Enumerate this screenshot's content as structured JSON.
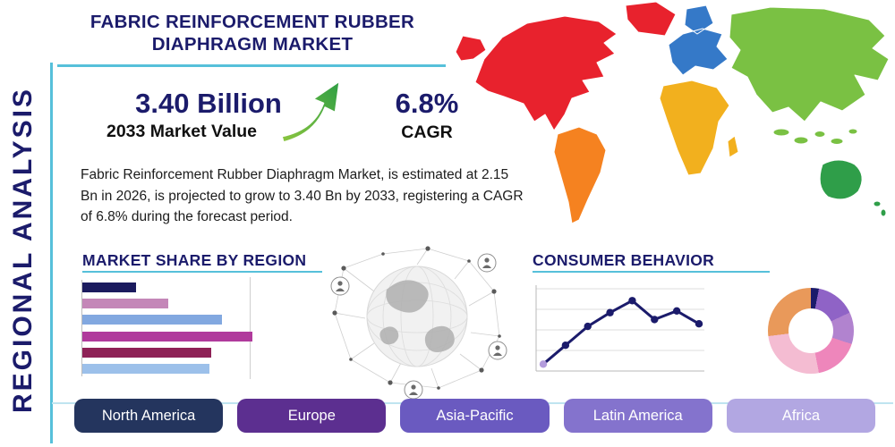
{
  "page": {
    "title": "FABRIC REINFORCEMENT RUBBER DIAPHRAGM MARKET",
    "side_label": "REGIONAL ANALYSIS"
  },
  "stats": {
    "market_value": "3.40 Billion",
    "market_value_label": "2033 Market Value",
    "cagr_value": "6.8%",
    "cagr_label": "CAGR"
  },
  "description": "Fabric Reinforcement Rubber Diaphragm Market, is estimated at 2.15 Bn in 2026, is projected to grow to 3.40 Bn by 2033, registering a CAGR of 6.8% during the forecast period.",
  "accent": {
    "teal": "#56c0da",
    "navy": "#1b1b6b",
    "arrow_green_light": "#8cc63f",
    "arrow_green_dark": "#2e9e44"
  },
  "chart_data": [
    {
      "type": "bar",
      "title": "MARKET SHARE BY REGION",
      "orientation": "horizontal",
      "values": [
        30,
        48,
        78,
        95,
        72,
        71
      ],
      "colors": [
        "#1b1b5e",
        "#c487b8",
        "#82a8e0",
        "#b03a9c",
        "#8e2156",
        "#9cc0ea"
      ],
      "xlim": [
        0,
        100
      ],
      "grid": true
    },
    {
      "type": "line",
      "title": "CONSUMER BEHAVIOR",
      "x": [
        1,
        2,
        3,
        4,
        5,
        6,
        7,
        8
      ],
      "values": [
        8,
        30,
        52,
        68,
        82,
        60,
        70,
        55
      ],
      "ylim": [
        0,
        100
      ],
      "line_color": "#1b1b6b",
      "marker_color": "#1b1b6b",
      "first_marker_color": "#b39cdc",
      "grid": true
    },
    {
      "type": "pie",
      "donut": true,
      "segments": [
        {
          "value": 3,
          "color": "#1b1b6b"
        },
        {
          "value": 15,
          "color": "#8f63c6"
        },
        {
          "value": 12,
          "color": "#b183cf"
        },
        {
          "value": 17,
          "color": "#ee86bb"
        },
        {
          "value": 26,
          "color": "#f4bcd2"
        },
        {
          "value": 27,
          "color": "#e9995a"
        }
      ]
    }
  ],
  "map": {
    "regions": [
      {
        "id": "north-america",
        "color": "#e8222d"
      },
      {
        "id": "greenland",
        "color": "#e8222d"
      },
      {
        "id": "south-america",
        "color": "#f58220"
      },
      {
        "id": "europe",
        "color": "#3579c8"
      },
      {
        "id": "africa",
        "color": "#f2b01e"
      },
      {
        "id": "asia",
        "color": "#7ac143"
      },
      {
        "id": "se-asia-islands",
        "color": "#7ac143"
      },
      {
        "id": "australia",
        "color": "#2f9e49"
      },
      {
        "id": "new-zealand",
        "color": "#2f9e49"
      }
    ]
  },
  "buttons": [
    {
      "label": "North America",
      "color": "#24355e"
    },
    {
      "label": "Europe",
      "color": "#5c2f90"
    },
    {
      "label": "Asia-Pacific",
      "color": "#6a5ac0"
    },
    {
      "label": "Latin America",
      "color": "#8473cd"
    },
    {
      "label": "Africa",
      "color": "#b2a7e2"
    }
  ]
}
